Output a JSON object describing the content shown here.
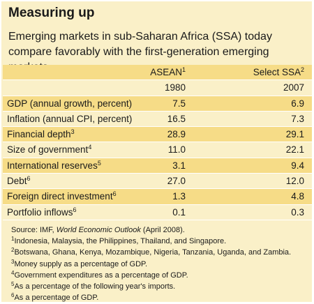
{
  "title": "Measuring up",
  "subtitle": "Emerging markets in sub-Saharan Africa (SSA) today compare favorably with the first-generation emerging markets.",
  "table": {
    "columns": [
      {
        "label": "ASEAN",
        "sup": "1",
        "year": "1980"
      },
      {
        "label": "Select SSA",
        "sup": "2",
        "year": "2007"
      }
    ],
    "rows": [
      {
        "label": "GDP (annual growth, percent)",
        "sup": "",
        "asean": "7.5",
        "ssa": "6.9"
      },
      {
        "label": "Inflation (annual CPI, percent)",
        "sup": "",
        "asean": "16.5",
        "ssa": "7.3"
      },
      {
        "label": "Financial depth",
        "sup": "3",
        "asean": "28.9",
        "ssa": "29.1"
      },
      {
        "label": "Size of government",
        "sup": "4",
        "asean": "11.0",
        "ssa": "22.1"
      },
      {
        "label": "International reserves",
        "sup": "5",
        "asean": "3.1",
        "ssa": "9.4"
      },
      {
        "label": "Debt",
        "sup": "6",
        "asean": "27.0",
        "ssa": "12.0"
      },
      {
        "label": "Foreign direct investment",
        "sup": "6",
        "asean": "1.3",
        "ssa": "4.8"
      },
      {
        "label": "Portfolio inflows",
        "sup": "6",
        "asean": "0.1",
        "ssa": "0.3"
      }
    ]
  },
  "notes": {
    "source_prefix": "Source: IMF, ",
    "source_italic": "World Economic Outlook",
    "source_suffix": " (April 2008).",
    "footnotes": [
      {
        "num": "1",
        "text": "Indonesia, Malaysia, the Philippines, Thailand, and Singapore."
      },
      {
        "num": "2",
        "text": "Botswana, Ghana, Kenya, Mozambique, Nigeria, Tanzania, Uganda, and Zambia."
      },
      {
        "num": "3",
        "text": "Money supply as a percentage of GDP."
      },
      {
        "num": "4",
        "text": "Government expenditures as a percentage of GDP."
      },
      {
        "num": "5",
        "text": "As a percentage of the following year's imports."
      },
      {
        "num": "6",
        "text": "As a percentage of GDP."
      }
    ]
  }
}
